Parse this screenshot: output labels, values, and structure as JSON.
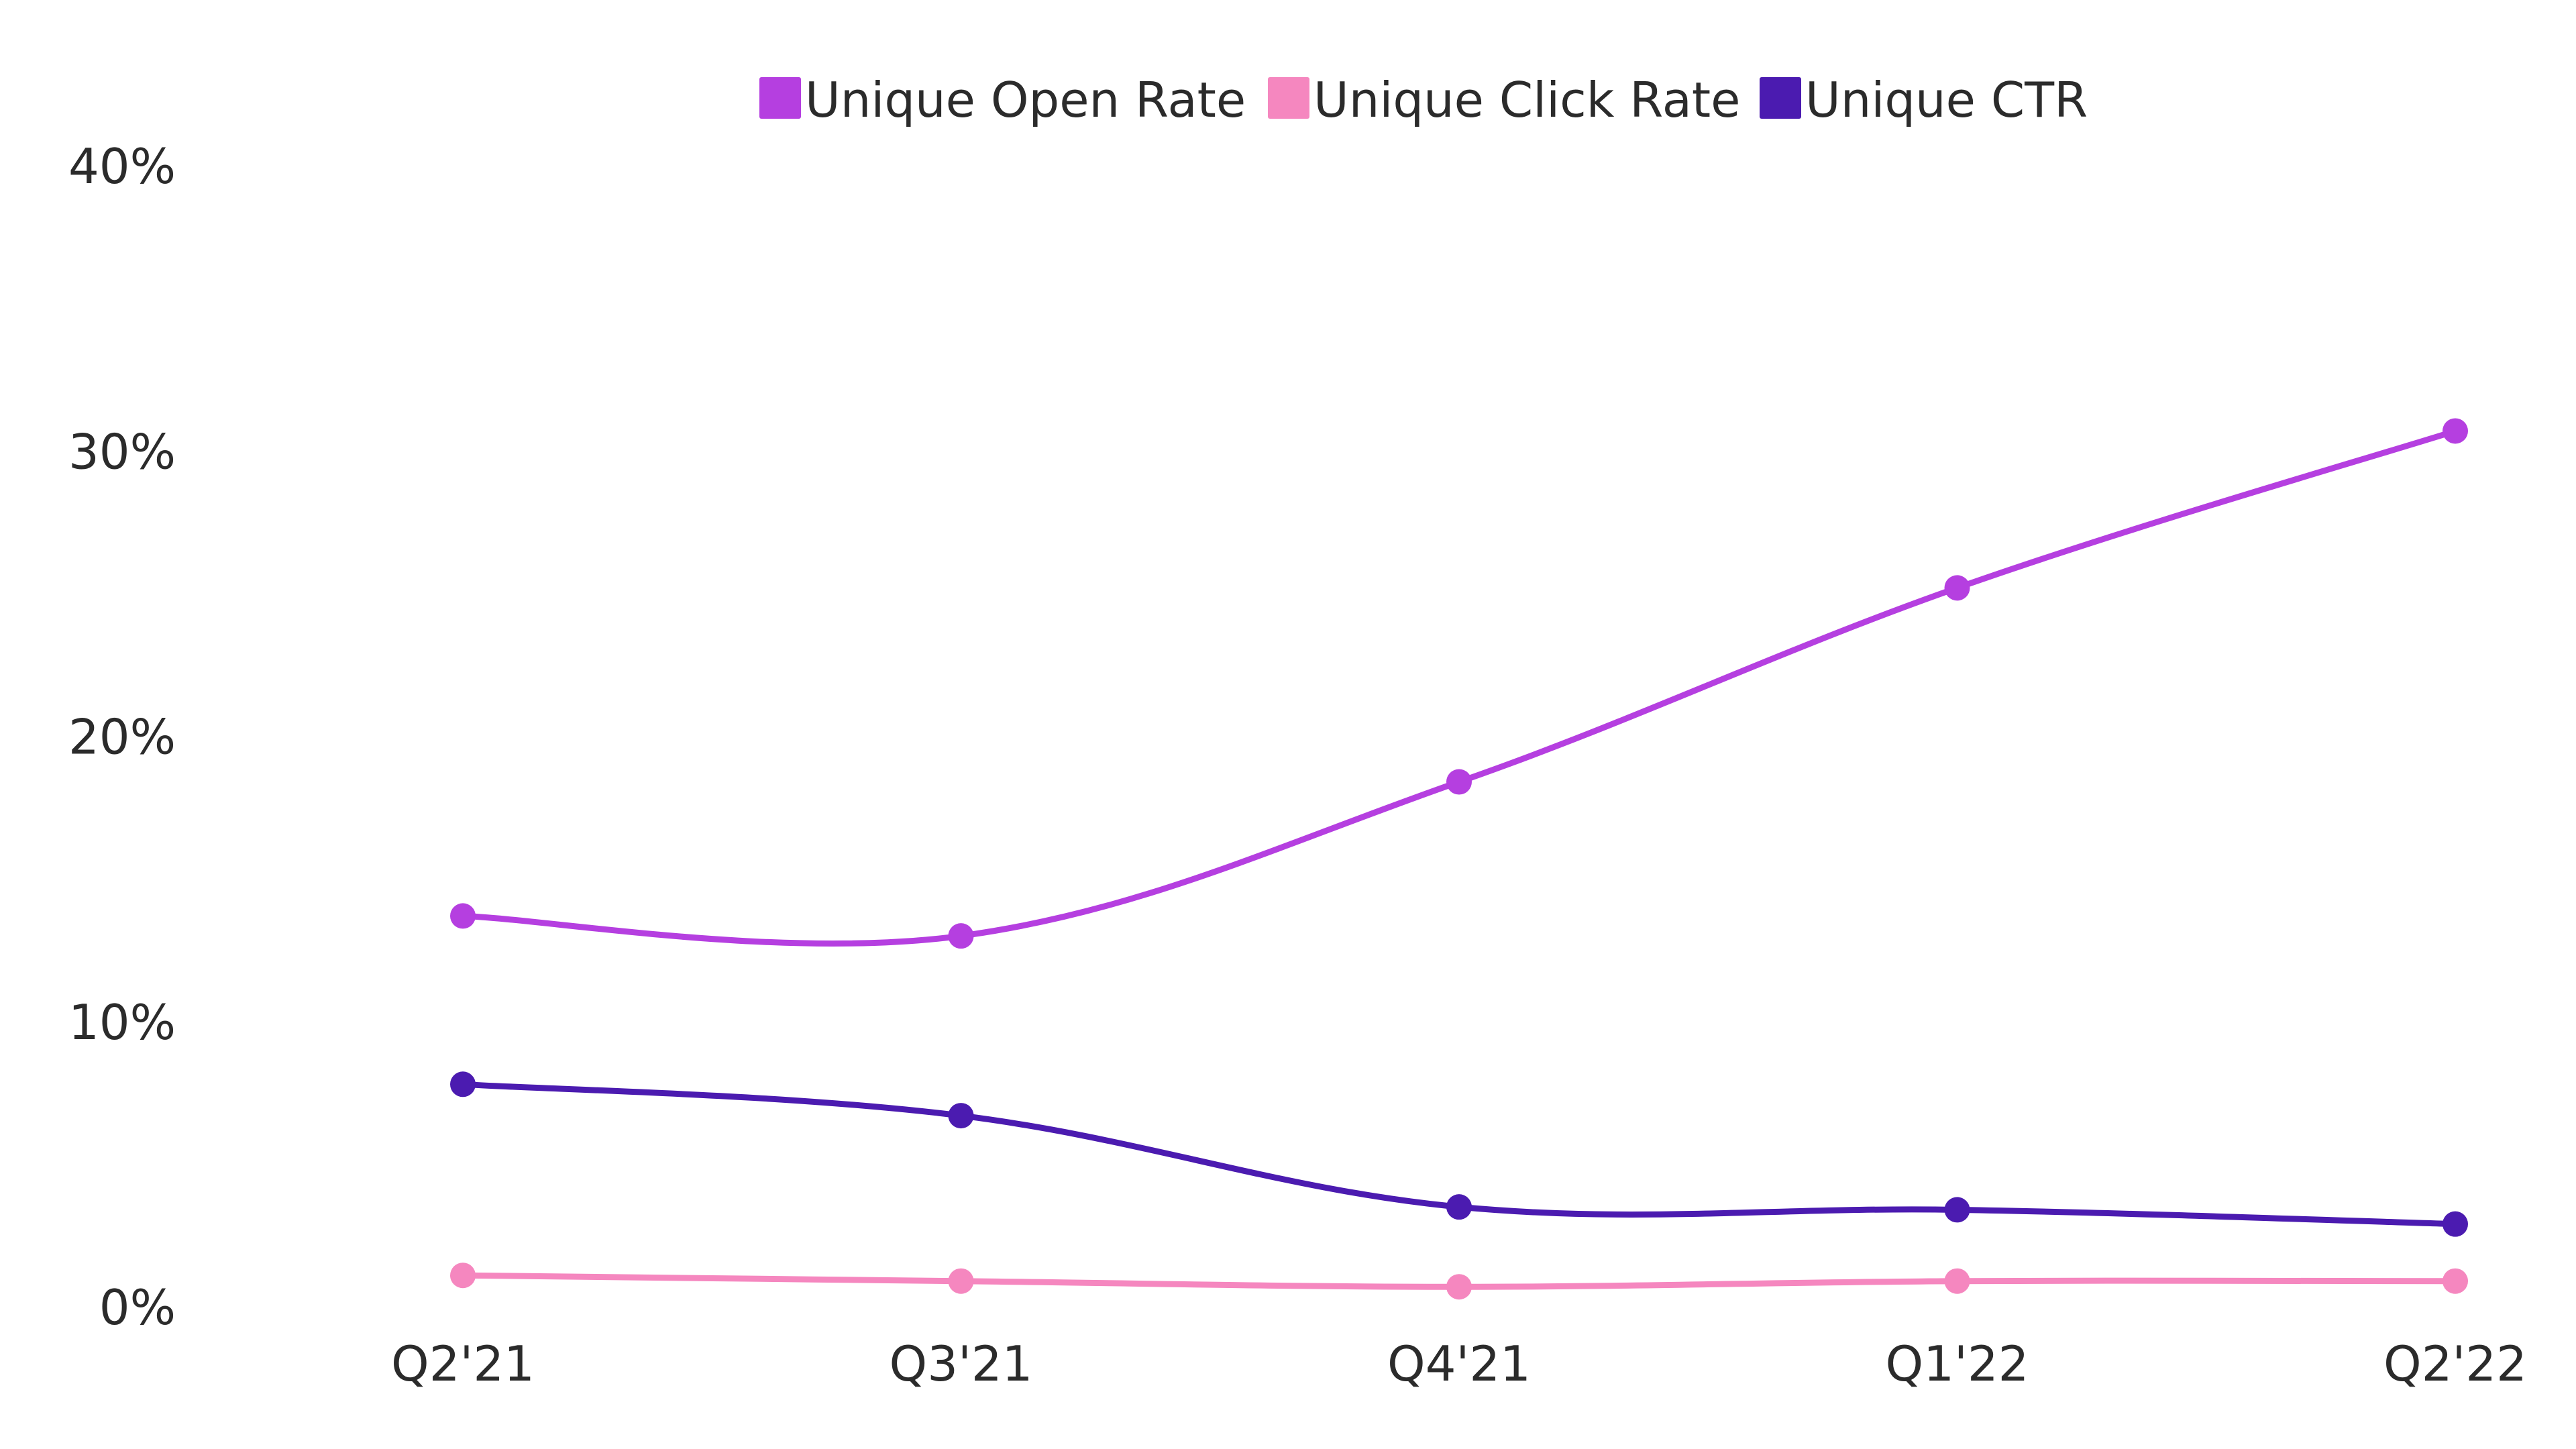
{
  "chart_data": {
    "type": "line",
    "categories": [
      "Q2'21",
      "Q3'21",
      "Q4'21",
      "Q1'22",
      "Q2'22"
    ],
    "y_ticks": [
      "0%",
      "10%",
      "20%",
      "30%",
      "40%"
    ],
    "y_tick_values": [
      0,
      10,
      20,
      30,
      40
    ],
    "ylim": [
      0,
      40
    ],
    "grid": false,
    "legend_position": "top-center",
    "series": [
      {
        "name": "Unique Open Rate",
        "color": "#b53fe0",
        "values": [
          13.7,
          13.0,
          18.4,
          25.2,
          30.7
        ]
      },
      {
        "name": "Unique Click Rate",
        "color": "#f587bf",
        "values": [
          1.1,
          0.9,
          0.7,
          0.9,
          0.9
        ]
      },
      {
        "name": "Unique CTR",
        "color": "#4b1bb0",
        "values": [
          7.8,
          6.7,
          3.5,
          3.4,
          2.9
        ]
      }
    ]
  }
}
